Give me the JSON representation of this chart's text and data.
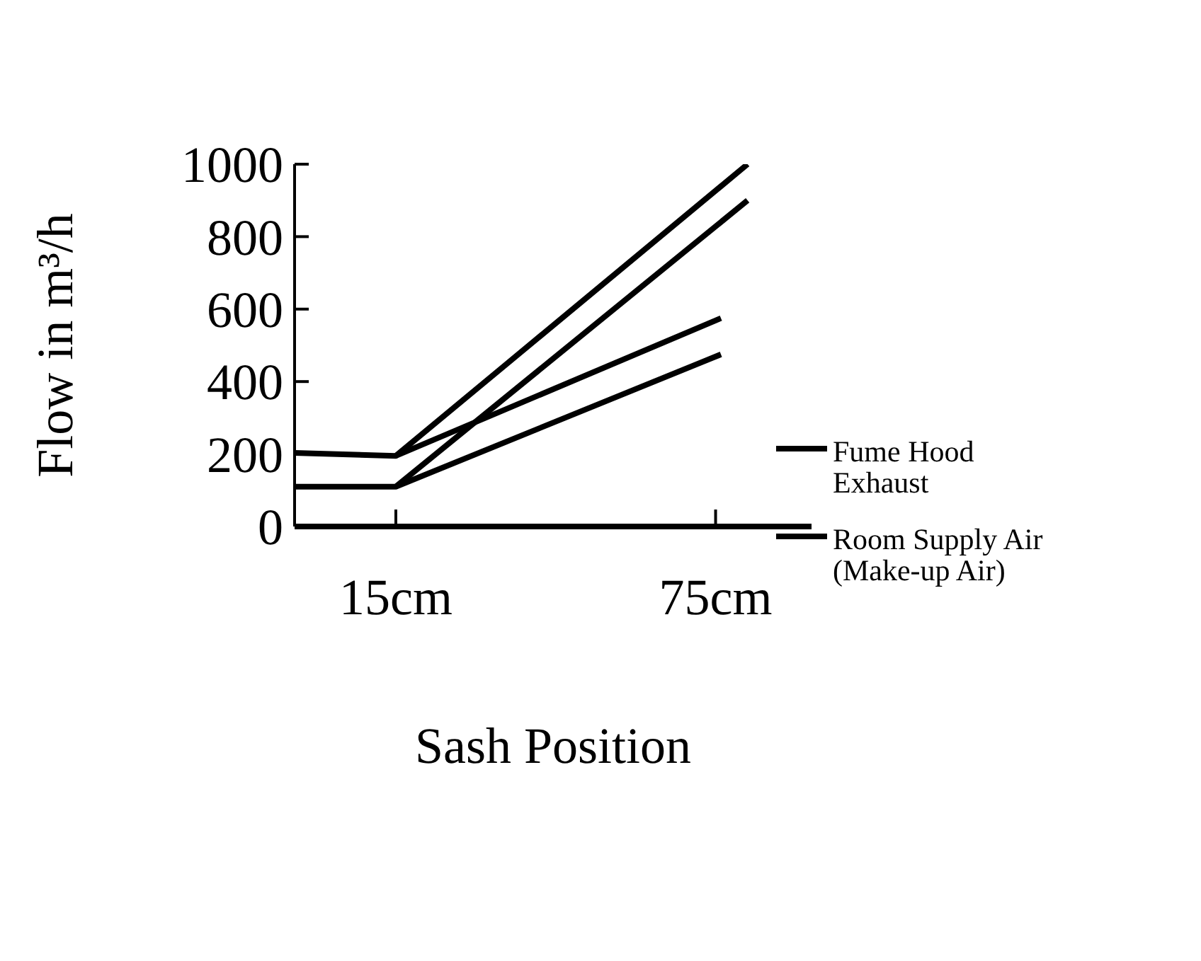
{
  "chart_data": {
    "type": "line",
    "xlabel": "Sash Position",
    "ylabel": "Flow in m³/h",
    "xlim": [
      -4,
      93
    ],
    "xticks": [
      {
        "value": 15,
        "label": "15cm"
      },
      {
        "value": 75,
        "label": "75cm"
      }
    ],
    "ylim": [
      0,
      1000
    ],
    "yticks": [
      0,
      200,
      400,
      600,
      800,
      1000
    ],
    "series": [
      {
        "name": "Fume Hood Exhaust",
        "color": "#000000",
        "x": [
          -4,
          15,
          81
        ],
        "values": [
          203,
          195,
          1000
        ]
      },
      {
        "color": "#000000",
        "x": [
          15,
          76
        ],
        "values": [
          195,
          575
        ]
      },
      {
        "name": "Room Supply Air (Make-up Air)",
        "color": "#000000",
        "x": [
          -4,
          15,
          81
        ],
        "values": [
          110,
          110,
          900
        ]
      },
      {
        "color": "#000000",
        "x": [
          15,
          76
        ],
        "values": [
          110,
          475
        ]
      }
    ],
    "grid": false,
    "legend": "right",
    "marker": "none",
    "line_style": "solid"
  }
}
